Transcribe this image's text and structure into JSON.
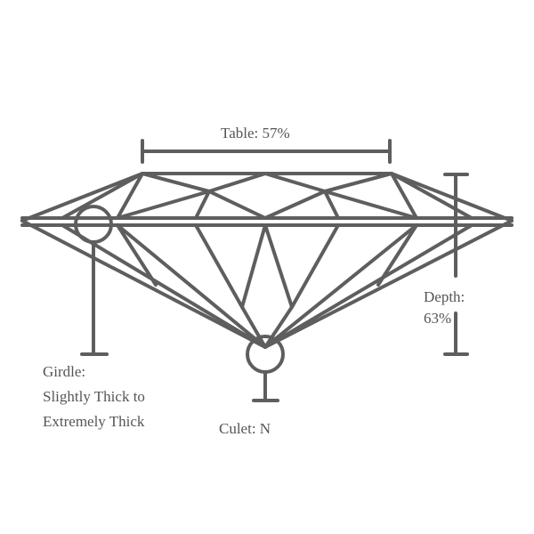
{
  "colors": {
    "stroke": "#5e5e5e",
    "text": "#555555",
    "background": "#ffffff"
  },
  "labels": {
    "table": "Table: 57%",
    "depth_line1": "Depth:",
    "depth_line2": "63%",
    "girdle_line1": "Girdle:",
    "girdle_line2": "Slightly Thick to",
    "girdle_line3": "Extremely Thick",
    "culet": "Culet: N"
  }
}
